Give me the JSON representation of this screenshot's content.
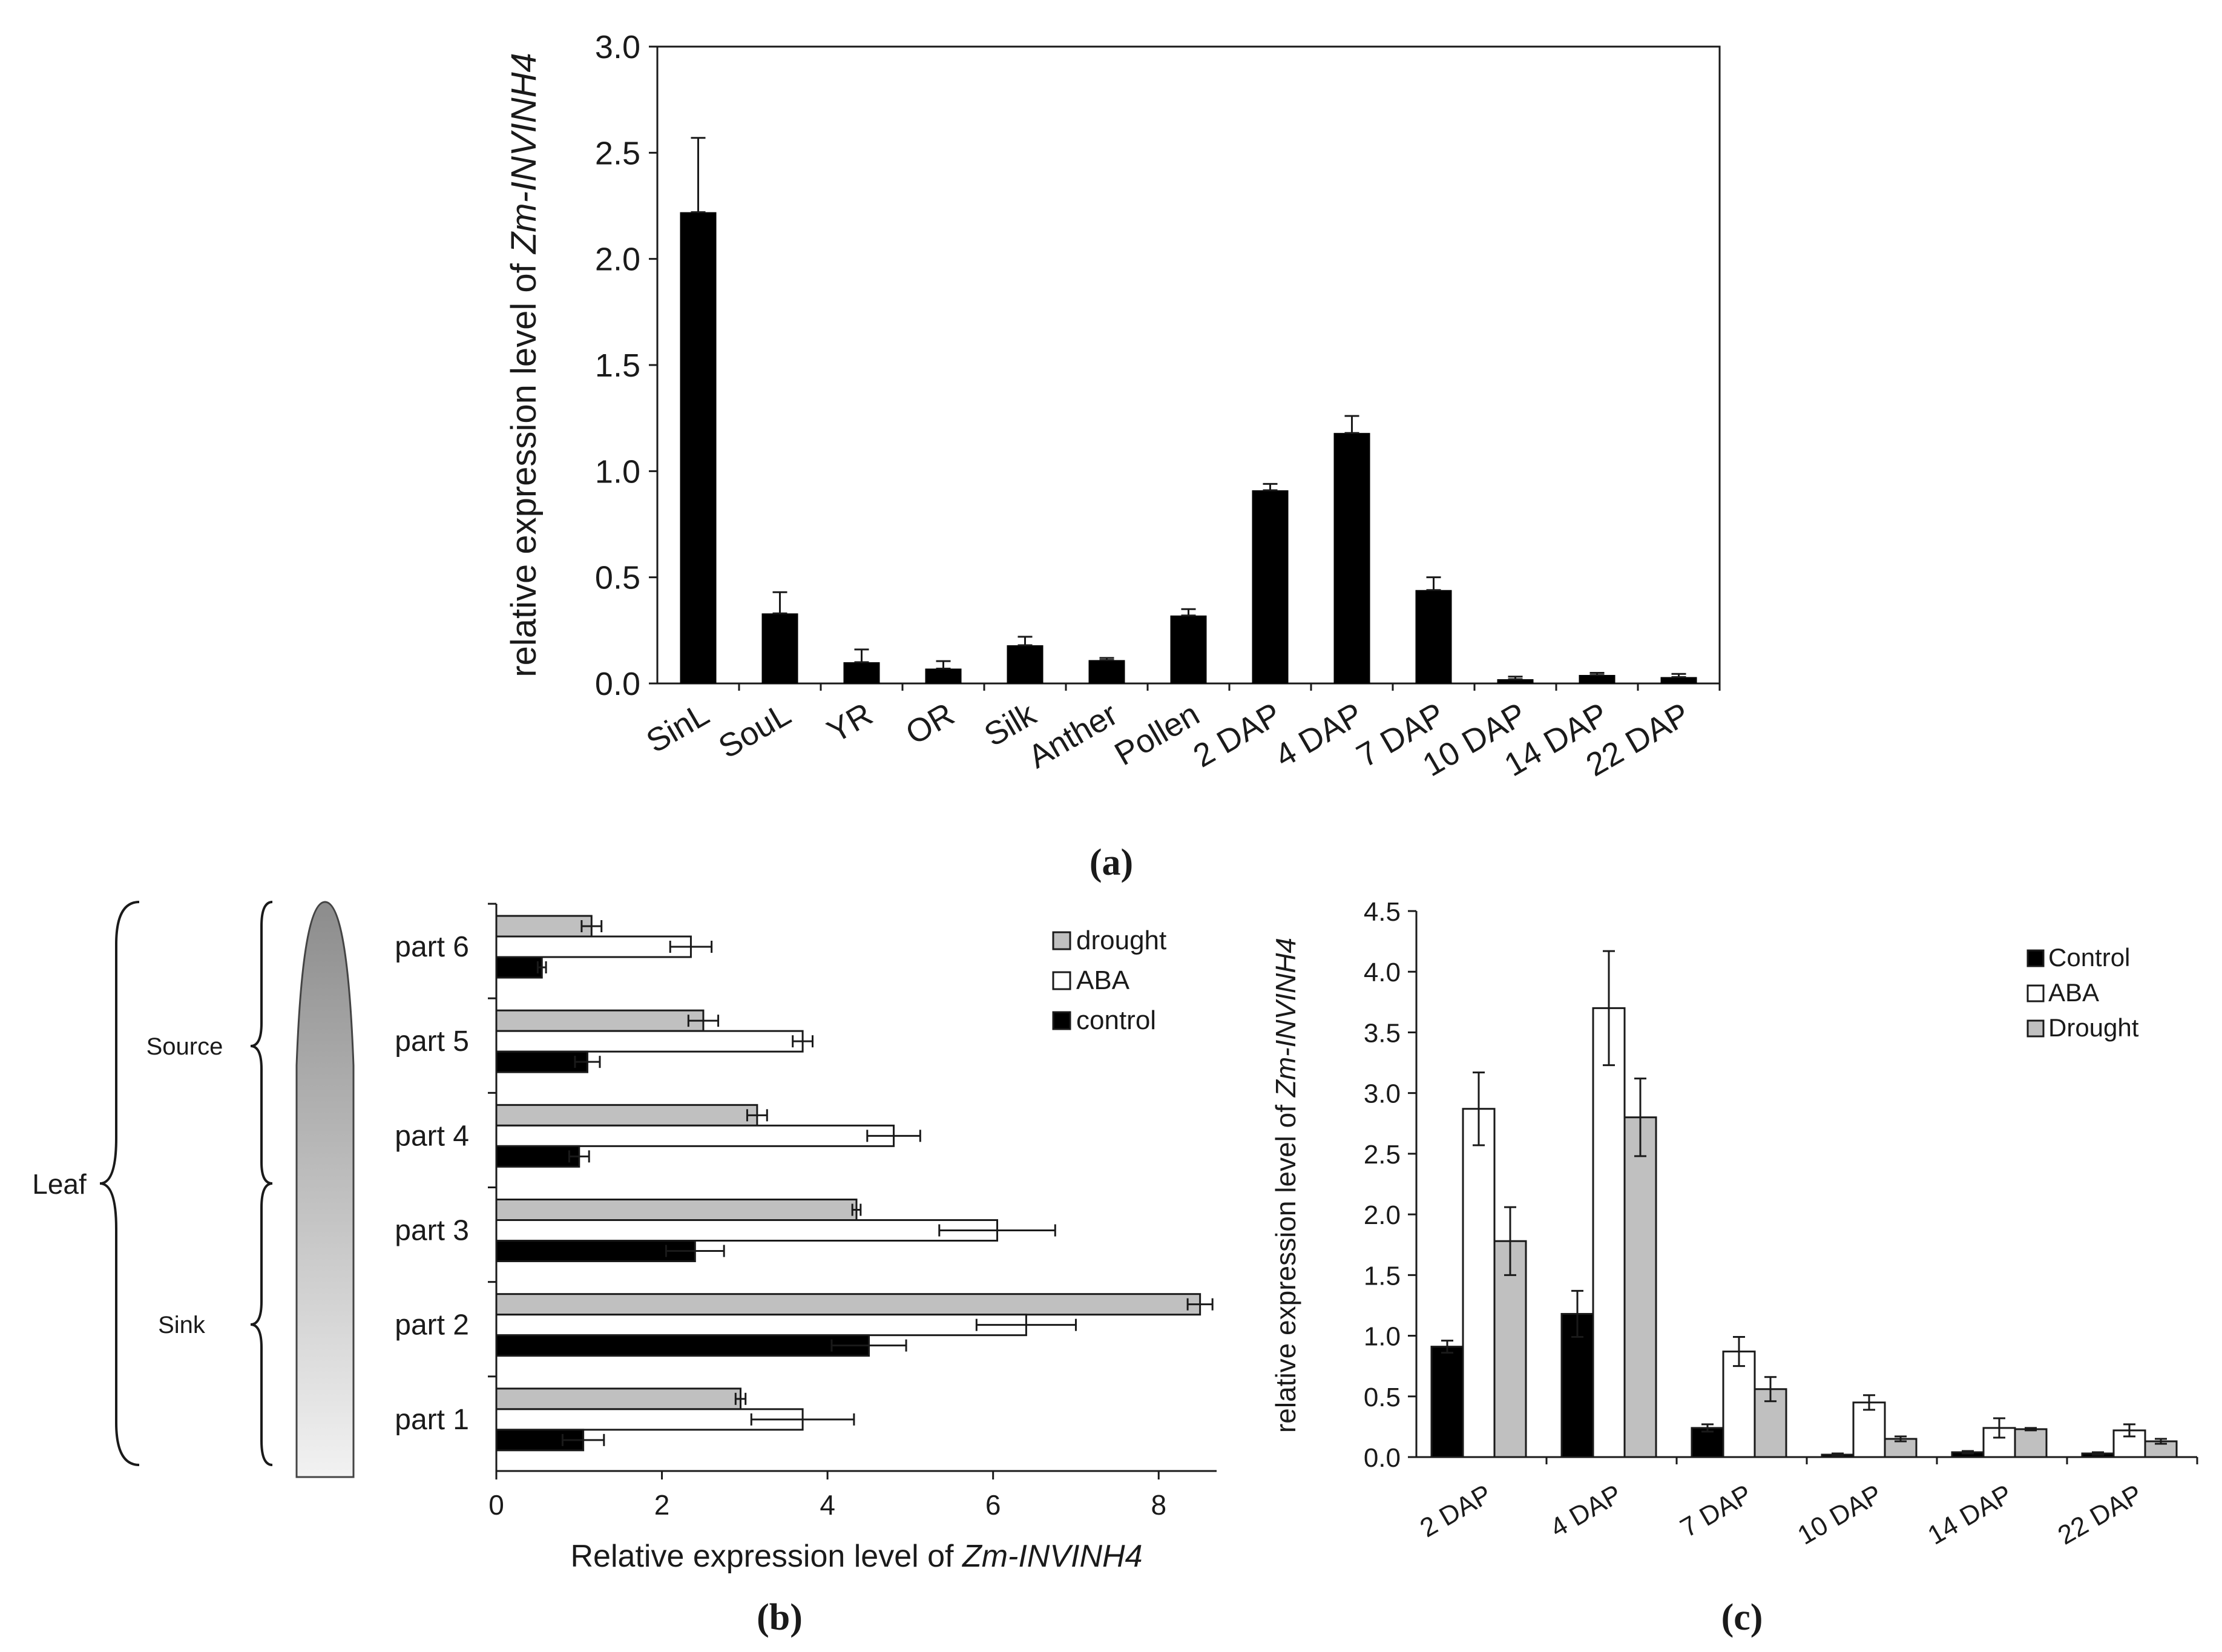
{
  "chart_data": [
    {
      "type": "bar",
      "panel": "(a)",
      "ylabel_prefix": "relative expression level of ",
      "ylabel_italic": "Zm-INVINH4",
      "ylim": [
        0,
        3.0
      ],
      "yticks": [
        "0.0",
        "0.5",
        "1.0",
        "1.5",
        "2.0",
        "2.5",
        "3.0"
      ],
      "categories": [
        "SinL",
        "SouL",
        "YR",
        "OR",
        "Silk",
        "Anther",
        "Pollen",
        "2 DAP",
        "4 DAP",
        "7 DAP",
        "10 DAP",
        "14 DAP",
        "22 DAP"
      ],
      "values": [
        2.22,
        0.33,
        0.1,
        0.07,
        0.18,
        0.11,
        0.32,
        0.91,
        1.18,
        0.44,
        0.02,
        0.04,
        0.03
      ],
      "errors": [
        0.35,
        0.1,
        0.06,
        0.035,
        0.04,
        0.01,
        0.03,
        0.03,
        0.08,
        0.06,
        0.012,
        0.01,
        0.015
      ],
      "color": "#000000"
    },
    {
      "type": "bar",
      "orientation": "horizontal",
      "panel": "(b)",
      "xlabel_prefix": "Relative expression level of ",
      "xlabel_italic": "Zm-INVINH4",
      "xlim": [
        0,
        8.7
      ],
      "xticks": [
        "0",
        "2",
        "4",
        "6",
        "8"
      ],
      "categories": [
        "part 6",
        "part 5",
        "part 4",
        "part 3",
        "part 2",
        "part 1"
      ],
      "series": [
        {
          "name": "drought",
          "color": "#c0c0c0",
          "values": [
            1.15,
            2.5,
            3.15,
            4.35,
            8.5,
            2.95
          ],
          "errors": [
            0.12,
            0.18,
            0.12,
            0.05,
            0.15,
            0.06
          ]
        },
        {
          "name": "ABA",
          "color": "#ffffff",
          "values": [
            2.35,
            3.7,
            4.8,
            6.05,
            6.4,
            3.7
          ],
          "errors": [
            0.25,
            0.12,
            0.32,
            0.7,
            0.6,
            0.62
          ]
        },
        {
          "name": "control",
          "color": "#000000",
          "values": [
            0.55,
            1.1,
            1.0,
            2.4,
            4.5,
            1.05
          ],
          "errors": [
            0.05,
            0.15,
            0.12,
            0.35,
            0.45,
            0.25
          ]
        }
      ],
      "legend": [
        "drought",
        "ABA",
        "control"
      ],
      "leaf_labels": {
        "leaf": "Leaf",
        "source": "Source",
        "sink": "Sink"
      }
    },
    {
      "type": "bar",
      "panel": "(c)",
      "ylabel_prefix": "relative expression level of ",
      "ylabel_italic": "Zm-INVINH4",
      "ylim": [
        0,
        4.5
      ],
      "yticks": [
        "0.0",
        "0.5",
        "1.0",
        "1.5",
        "2.0",
        "2.5",
        "3.0",
        "3.5",
        "4.0",
        "4.5"
      ],
      "categories": [
        "2 DAP",
        "4 DAP",
        "7 DAP",
        "10 DAP",
        "14 DAP",
        "22 DAP"
      ],
      "series": [
        {
          "name": "Control",
          "color": "#000000",
          "values": [
            0.91,
            1.18,
            0.24,
            0.02,
            0.04,
            0.03
          ],
          "errors": [
            0.05,
            0.19,
            0.03,
            0.01,
            0.01,
            0.01
          ]
        },
        {
          "name": "ABA",
          "color": "#ffffff",
          "values": [
            2.87,
            3.7,
            0.87,
            0.45,
            0.24,
            0.22
          ],
          "errors": [
            0.3,
            0.47,
            0.12,
            0.06,
            0.08,
            0.05
          ]
        },
        {
          "name": "Drought",
          "color": "#c0c0c0",
          "values": [
            1.78,
            2.8,
            0.56,
            0.15,
            0.23,
            0.13
          ],
          "errors": [
            0.28,
            0.32,
            0.1,
            0.02,
            0.01,
            0.02
          ]
        }
      ],
      "legend": [
        "Control",
        "ABA",
        "Drought"
      ]
    }
  ]
}
